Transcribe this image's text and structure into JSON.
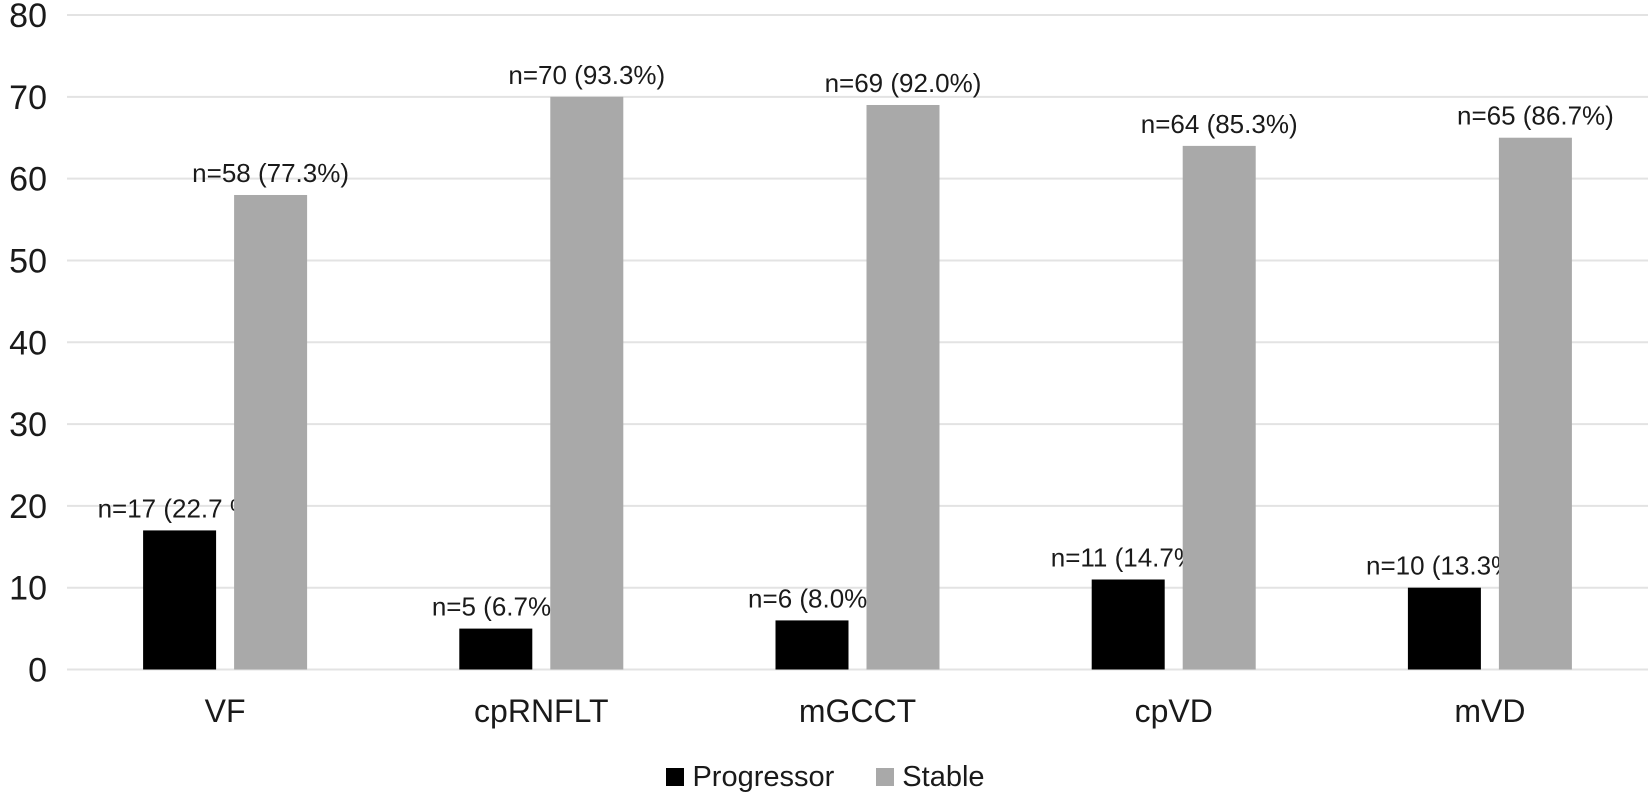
{
  "chart_data": {
    "type": "bar",
    "title": "",
    "xlabel": "",
    "ylabel": "",
    "categories": [
      "VF",
      "cpRNFLT",
      "mGCCT",
      "cpVD",
      "mVD"
    ],
    "series": [
      {
        "name": "Progressor",
        "color": "#000000",
        "values": [
          17,
          5,
          6,
          11,
          10
        ],
        "data_labels": [
          "n=17 (22.7 %)",
          "n=5 (6.7%)",
          "n=6 (8.0%)",
          "n=11 (14.7%)",
          "n=10 (13.3%)"
        ]
      },
      {
        "name": "Stable",
        "color": "#a9a9a9",
        "values": [
          58,
          70,
          69,
          64,
          65
        ],
        "data_labels": [
          "n=58 (77.3%)",
          "n=70 (93.3%)",
          "n=69 (92.0%)",
          "n=64 (85.3%)",
          "n=65 (86.7%)"
        ]
      }
    ],
    "y_axis": {
      "min": 0,
      "max": 80,
      "step": 10,
      "tick_labels": [
        "0",
        "10",
        "20",
        "30",
        "40",
        "50",
        "60",
        "70",
        "80"
      ]
    },
    "grid": true,
    "gridline_color": "#e3e3e3",
    "background": "#ffffff",
    "text_color": "#1a1a1a",
    "legend": {
      "position": "bottom",
      "entries": [
        {
          "label": "Progressor",
          "swatch_color": "#000000"
        },
        {
          "label": "Stable",
          "swatch_color": "#a9a9a9"
        }
      ]
    }
  }
}
